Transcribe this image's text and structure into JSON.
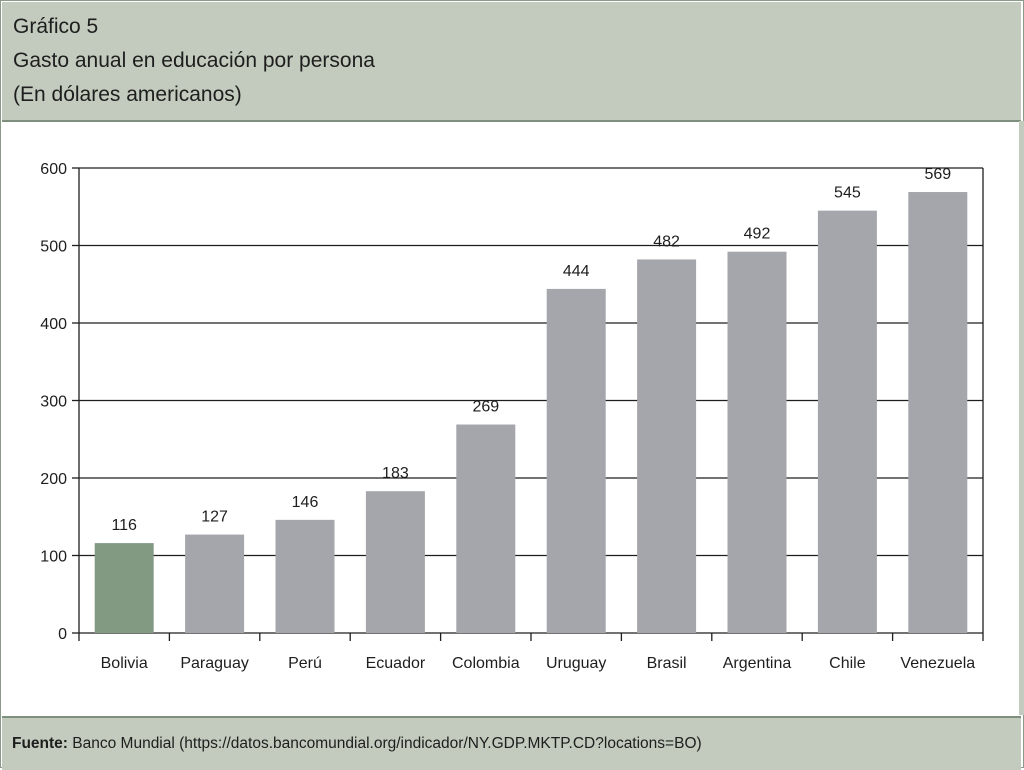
{
  "header": {
    "figure_label": "Gráfico 5",
    "title": "Gasto anual en educación por persona",
    "subtitle": "(En dólares americanos)"
  },
  "footer": {
    "source_label": "Fuente:",
    "source_text": "Banco Mundial (https://datos.bancomundial.org/indicador/NY.GDP.MKTP.CD?locations=BO)"
  },
  "colors": {
    "highlight_bar": "#839a82",
    "default_bar": "#a5a6ab",
    "header_bg": "#c2cbbd"
  },
  "chart_data": {
    "type": "bar",
    "title": "Gasto anual en educación por persona",
    "xlabel": "",
    "ylabel": "",
    "categories": [
      "Bolivia",
      "Paraguay",
      "Perú",
      "Ecuador",
      "Colombia",
      "Uruguay",
      "Brasil",
      "Argentina",
      "Chile",
      "Venezuela"
    ],
    "values": [
      116,
      127,
      146,
      183,
      269,
      444,
      482,
      492,
      545,
      569
    ],
    "highlighted": [
      "Bolivia"
    ],
    "ylim": [
      0,
      600
    ],
    "yticks": [
      0,
      100,
      200,
      300,
      400,
      500,
      600
    ],
    "grid": true,
    "legend": "none"
  }
}
